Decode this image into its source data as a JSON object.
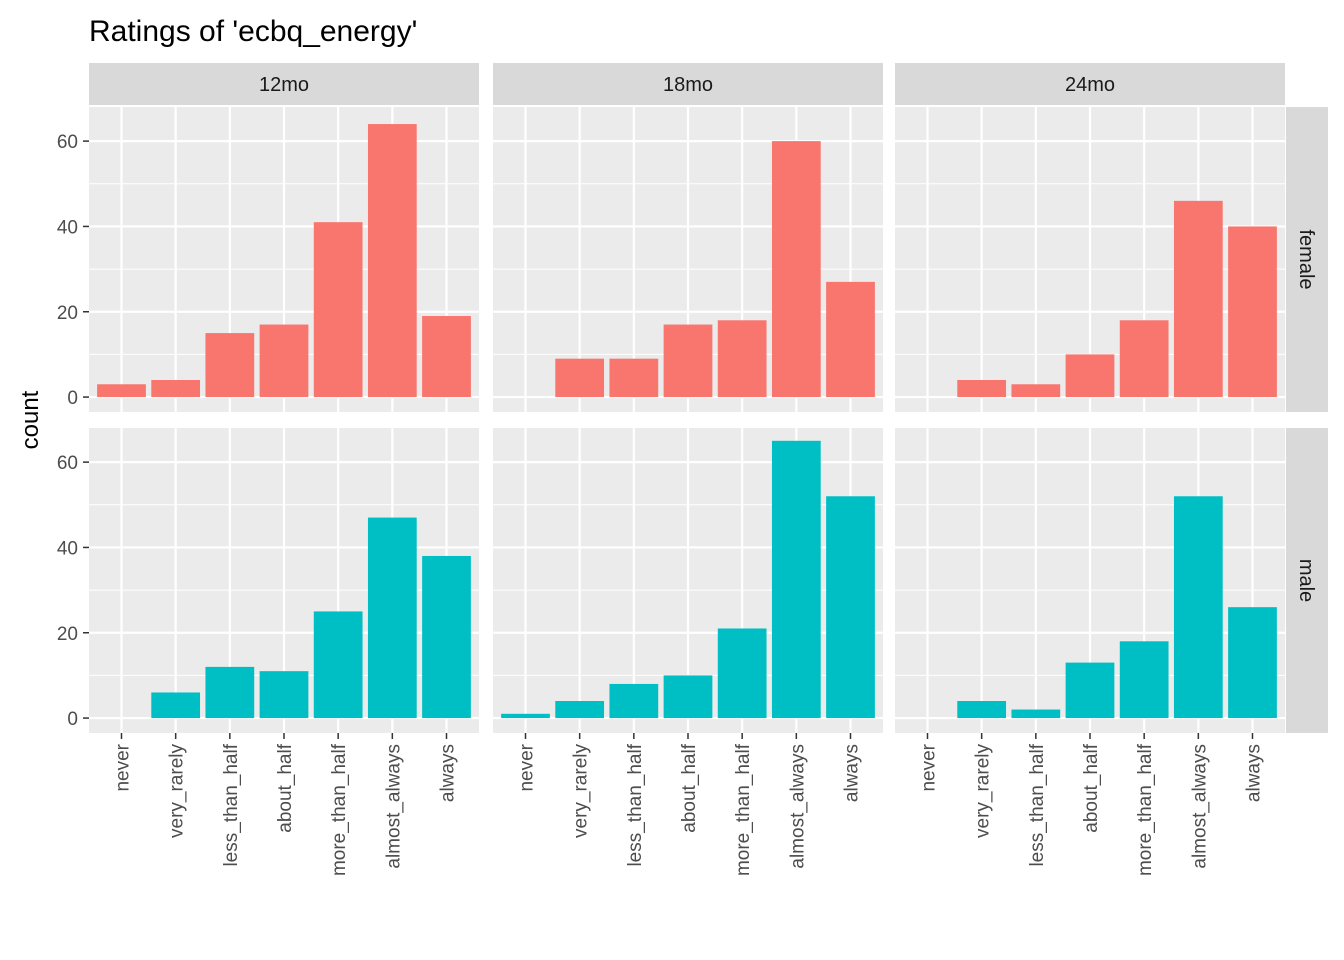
{
  "chart_data": {
    "type": "bar",
    "title": "Ratings of 'ecbq_energy'",
    "xlabel": "",
    "ylabel": "count",
    "ylim": [
      0,
      68
    ],
    "yticks": [
      0,
      20,
      40,
      60
    ],
    "grid": true,
    "categories": [
      "never",
      "very_rarely",
      "less_than_half",
      "about_half",
      "more_than_half",
      "almost_always",
      "always"
    ],
    "facet_columns": [
      "12mo",
      "18mo",
      "24mo"
    ],
    "facet_rows": [
      "female",
      "male"
    ],
    "colors": {
      "female": "#F8766D",
      "male": "#00BFC4"
    },
    "series": [
      {
        "row": "female",
        "column": "12mo",
        "values": [
          3,
          4,
          15,
          17,
          41,
          64,
          19
        ]
      },
      {
        "row": "female",
        "column": "18mo",
        "values": [
          0,
          9,
          9,
          17,
          18,
          60,
          27
        ]
      },
      {
        "row": "female",
        "column": "24mo",
        "values": [
          0,
          4,
          3,
          10,
          18,
          46,
          40
        ]
      },
      {
        "row": "male",
        "column": "12mo",
        "values": [
          0,
          6,
          12,
          11,
          25,
          47,
          38
        ]
      },
      {
        "row": "male",
        "column": "18mo",
        "values": [
          1,
          4,
          8,
          10,
          21,
          65,
          52
        ]
      },
      {
        "row": "male",
        "column": "24mo",
        "values": [
          0,
          4,
          2,
          13,
          18,
          52,
          26
        ]
      }
    ]
  }
}
